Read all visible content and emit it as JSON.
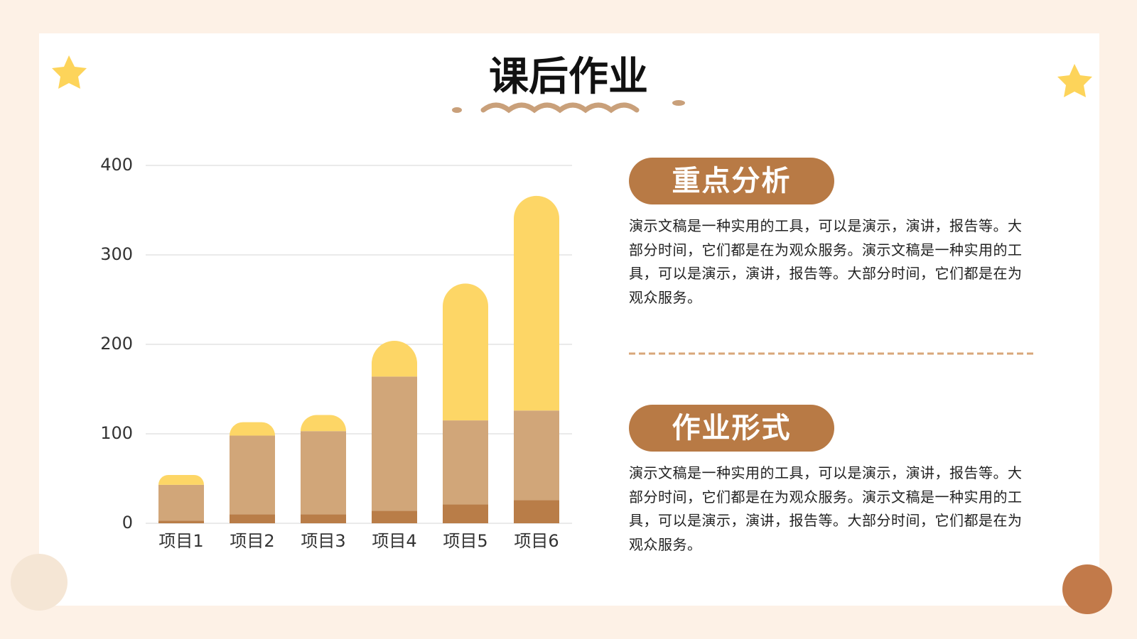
{
  "header": {
    "title": "课后作业"
  },
  "chart_data": {
    "type": "bar",
    "stacked": true,
    "categories": [
      "项目1",
      "项目2",
      "项目3",
      "项目4",
      "项目5",
      "项目6"
    ],
    "series": [
      {
        "color": "#b97d48",
        "values": [
          3,
          10,
          10,
          14,
          21,
          26
        ]
      },
      {
        "color": "#d1a679",
        "values": [
          40,
          88,
          93,
          150,
          94,
          100
        ]
      },
      {
        "color": "#fdd666",
        "values": [
          11,
          15,
          18,
          40,
          153,
          240
        ]
      }
    ],
    "ylim": [
      0,
      400
    ],
    "yticks": [
      0,
      100,
      200,
      300,
      400
    ],
    "grid": true
  },
  "sections": [
    {
      "heading": "重点分析",
      "body": "演示文稿是一种实用的工具，可以是演示，演讲，报告等。大部分时间，它们都是在为观众服务。演示文稿是一种实用的工具，可以是演示，演讲，报告等。大部分时间，它们都是在为观众服务。"
    },
    {
      "heading": "作业形式",
      "body": "演示文稿是一种实用的工具，可以是演示，演讲，报告等。大部分时间，它们都是在为观众服务。演示文稿是一种实用的工具，可以是演示，演讲，报告等。大部分时间，它们都是在为观众服务。"
    }
  ]
}
